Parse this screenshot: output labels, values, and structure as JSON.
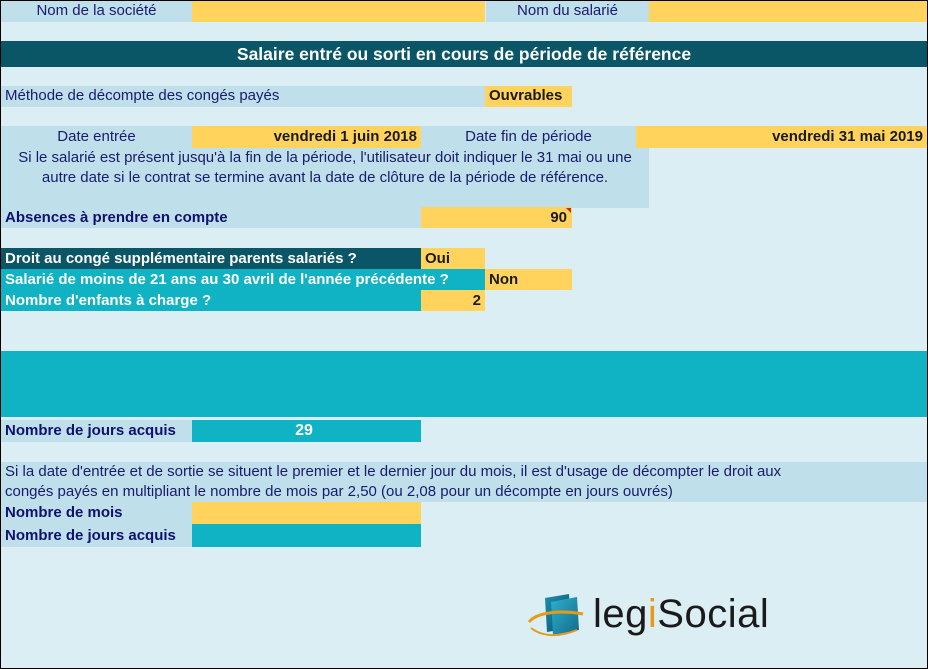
{
  "header": {
    "company_label": "Nom de la société",
    "company_value": "",
    "employee_label": "Nom du salarié",
    "employee_value": ""
  },
  "title": "Salaire entré ou sorti en cours de période de référence",
  "method": {
    "label": "Méthode de décompte des congés payés",
    "value": "Ouvrables"
  },
  "dates": {
    "entry_label": "Date entrée",
    "entry_value": "vendredi 1 juin 2018",
    "end_label": "Date fin de période",
    "end_value": "vendredi 31 mai 2019",
    "note_line1": "Si le salarié est présent jusqu'à la fin de la période, l'utilisateur doit indiquer le 31 mai ou une",
    "note_line2": "autre date si le contrat se termine avant la date de clôture de la période de référence."
  },
  "absences": {
    "label": "Absences à prendre en compte",
    "value": "90"
  },
  "parents": {
    "right_label": "Droit au congé supplémentaire parents salariés ?",
    "right_value": "Oui",
    "under21_label": "Salarié de moins de 21 ans au 30 avril de l'année précédente ?",
    "under21_value": "Non",
    "children_label": "Nombre d'enfants à charge ?",
    "children_value": "2"
  },
  "result": {
    "label": "Nombre de jours acquis",
    "value": "29"
  },
  "monthly": {
    "note_line1": "Si la date d'entrée et de sortie se situent le premier et le dernier jour du mois, il est d'usage de décompter le droit aux",
    "note_line2": "congés payés en multipliant le nombre de mois par 2,50 (ou 2,08 pour un décompte en jours ouvrés)",
    "months_label": "Nombre de mois",
    "months_value": "",
    "days_label": "Nombre de jours acquis",
    "days_value": ""
  },
  "logo": {
    "part1": "legi",
    "part2": "Social"
  },
  "colors": {
    "background": "#daeef4",
    "light_blue": "#bfe0ea",
    "yellow": "#ffd35c",
    "teal": "#0fb3c3",
    "dark_teal": "#0a5566"
  }
}
